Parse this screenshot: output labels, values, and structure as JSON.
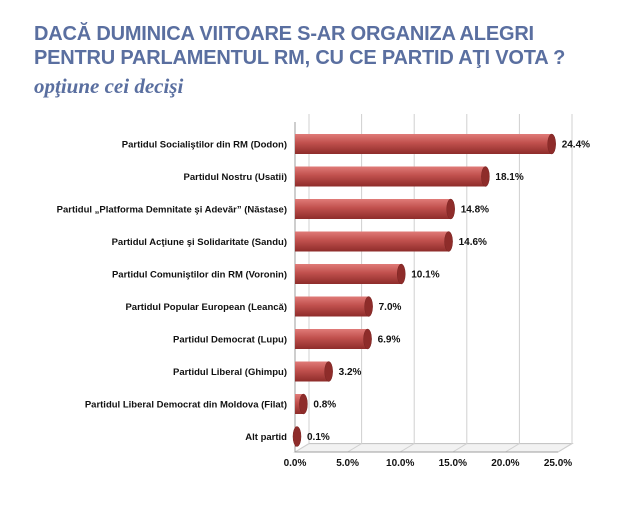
{
  "header": {
    "title": "DACĂ  DUMINICA VIITOARE S-AR ORGANIZA ALEGRI PENTRU PARLAMENTUL RM, CU CE PARTID AŢI VOTA ?",
    "subtitle": "opţiune  cei decişi"
  },
  "colors": {
    "title": "#5a6fa0",
    "bar": "#c0504d",
    "bar_dark": "#8e2c2a",
    "bar_light": "#e07b78"
  },
  "chart_data": {
    "type": "bar",
    "orientation": "horizontal",
    "categories": [
      "Partidul Socialiştilor din RM  (Dodon)",
      "Partidul Nostru  (Usatii)",
      "Partidul „Platforma Demnitate şi Adevăr” (Năstase)",
      "Partidul Acţiune şi Solidaritate (Sandu)",
      "Partidul Comuniştilor din RM  (Voronin)",
      "Partidul Popular European  (Leancă)",
      "Partidul Democrat (Lupu)",
      "Partidul Liberal (Ghimpu)",
      "Partidul Liberal Democrat din Moldova (Filat)",
      "Alt partid"
    ],
    "values": [
      24.4,
      18.1,
      14.8,
      14.6,
      10.1,
      7.0,
      6.9,
      3.2,
      0.8,
      0.1
    ],
    "value_labels": [
      "24.4%",
      "18.1%",
      "14.8%",
      "14.6%",
      "10.1%",
      "7.0%",
      "6.9%",
      "3.2%",
      "0.8%",
      "0.1%"
    ],
    "xticks": [
      "0.0%",
      "5.0%",
      "10.0%",
      "15.0%",
      "20.0%",
      "25.0%"
    ],
    "xlim": [
      0,
      25
    ],
    "grid": true,
    "legend": "none"
  }
}
